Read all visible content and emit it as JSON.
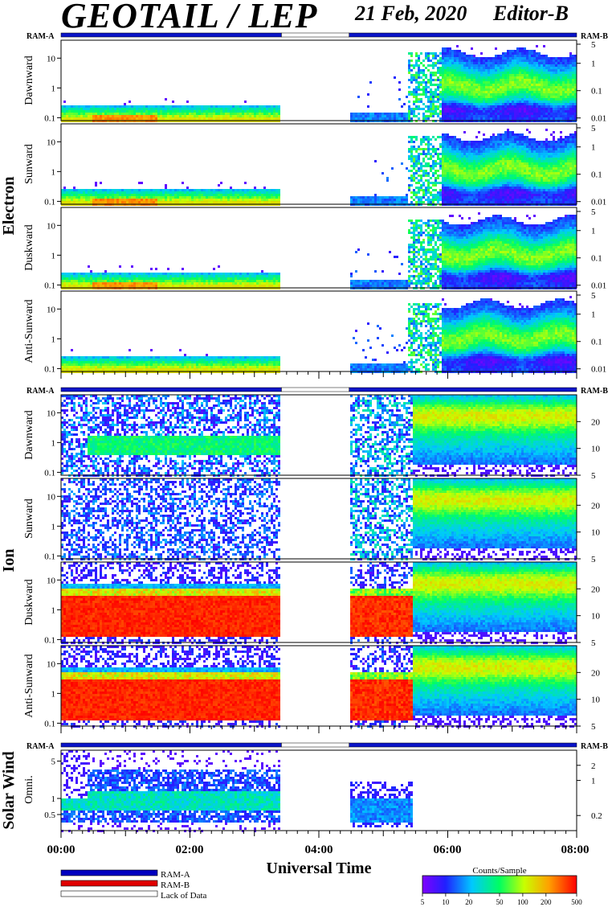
{
  "header": {
    "title": "GEOTAIL / LEP",
    "date": "21 Feb, 2020",
    "editor": "Editor-B"
  },
  "ram_labels": {
    "left": "RAM-A",
    "right": "RAM-B"
  },
  "groups": [
    {
      "name": "Electron",
      "panels": [
        "Dawnward",
        "Sunward",
        "Duskward",
        "Anti-Sunward"
      ]
    },
    {
      "name": "Ion",
      "panels": [
        "Dawnward",
        "Sunward",
        "Duskward",
        "Anti-Sunward"
      ]
    },
    {
      "name": "Solar Wind",
      "panels": [
        "Omni."
      ]
    }
  ],
  "chart_data": {
    "type": "heatmap",
    "xlabel": "Universal Time",
    "x_ticks": [
      "00:00",
      "02:00",
      "04:00",
      "06:00",
      "08:00"
    ],
    "x_range_hours": [
      0,
      8
    ],
    "data_gap_hours": [
      3.42,
      4.47
    ],
    "electron_panels": {
      "left_axis_ticks": [
        "0.1",
        "1",
        "10"
      ],
      "right_axis_ticks": [
        "0.01",
        "0.1",
        "1",
        "5"
      ],
      "scale": "log"
    },
    "ion_panels": {
      "left_axis_ticks": [
        "0.1",
        "1",
        "10"
      ],
      "right_axis_ticks": [
        "5",
        "10",
        "20"
      ],
      "scale": "log"
    },
    "solar_wind_panel": {
      "left_axis_ticks": [
        "0.5",
        "1",
        "5"
      ],
      "right_axis_ticks": [
        "0.2",
        "1",
        "2"
      ],
      "scale": "log"
    },
    "legend": [
      {
        "label": "RAM-A",
        "color": "#0000c0"
      },
      {
        "label": "RAM-B",
        "color": "#e00000"
      },
      {
        "label": "Lack of Data",
        "color": "#ffffff"
      }
    ],
    "colorbar": {
      "title": "Counts/Sample",
      "ticks": [
        "5",
        "10",
        "20",
        "50",
        "100",
        "200",
        "500"
      ],
      "tick_values": [
        5,
        10,
        20,
        50,
        100,
        200,
        500
      ],
      "range": [
        5,
        500
      ],
      "scale": "log"
    }
  }
}
